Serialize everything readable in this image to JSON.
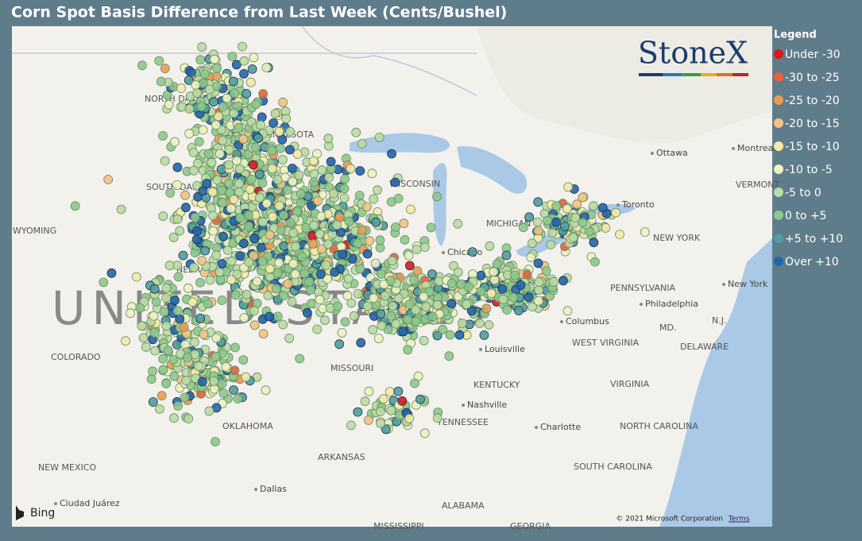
{
  "header": {
    "title": "Corn Spot Basis Difference from Last Week (Cents/Bushel)"
  },
  "legend": {
    "title": "Legend",
    "items": [
      {
        "label": "Under -30",
        "color": "#d7191c"
      },
      {
        "label": "-30 to -25",
        "color": "#e4623a"
      },
      {
        "label": "-25 to -20",
        "color": "#ef9a52"
      },
      {
        "label": "-20 to -15",
        "color": "#f4c37e"
      },
      {
        "label": "-15 to -10",
        "color": "#f6eaa6"
      },
      {
        "label": "-10 to -5",
        "color": "#eef3c0"
      },
      {
        "label": "-5 to 0",
        "color": "#b9dca2"
      },
      {
        "label": "0 to +5",
        "color": "#8cc98c"
      },
      {
        "label": "+5 to +10",
        "color": "#4f9f9f"
      },
      {
        "label": "Over +10",
        "color": "#2166ac"
      }
    ]
  },
  "logo": {
    "text": "StoneX"
  },
  "map": {
    "country_label": "UNITED STATES",
    "labels": [
      "NORTH DAKOTA",
      "SOUTH DAKOTA",
      "MINNESOTA",
      "WISCONSIN",
      "MICHIGAN",
      "WYOMING",
      "NEBRASKA",
      "COLORADO",
      "MISSOURI",
      "KENTUCKY",
      "TENNESSEE",
      "OKLAHOMA",
      "ARKANSAS",
      "NEW MEXICO",
      "MISSISSIPPI",
      "ALABAMA",
      "GEORGIA",
      "SOUTH CAROLINA",
      "NORTH CAROLINA",
      "VIRGINIA",
      "WEST VIRGINIA",
      "PENNSYLVANIA",
      "NEW YORK",
      "MD.",
      "N.J.",
      "DELAWARE",
      "VERMONT"
    ],
    "cities": [
      "Ottawa",
      "Montreal",
      "Toronto",
      "Chicago",
      "Columbus",
      "Louisville",
      "Nashville",
      "Charlotte",
      "Philadelphia",
      "New York",
      "Dallas",
      "Ciudad Juárez"
    ],
    "provider": "Bing",
    "copyright": "© 2021 Microsoft Corporation",
    "terms": "Terms"
  }
}
